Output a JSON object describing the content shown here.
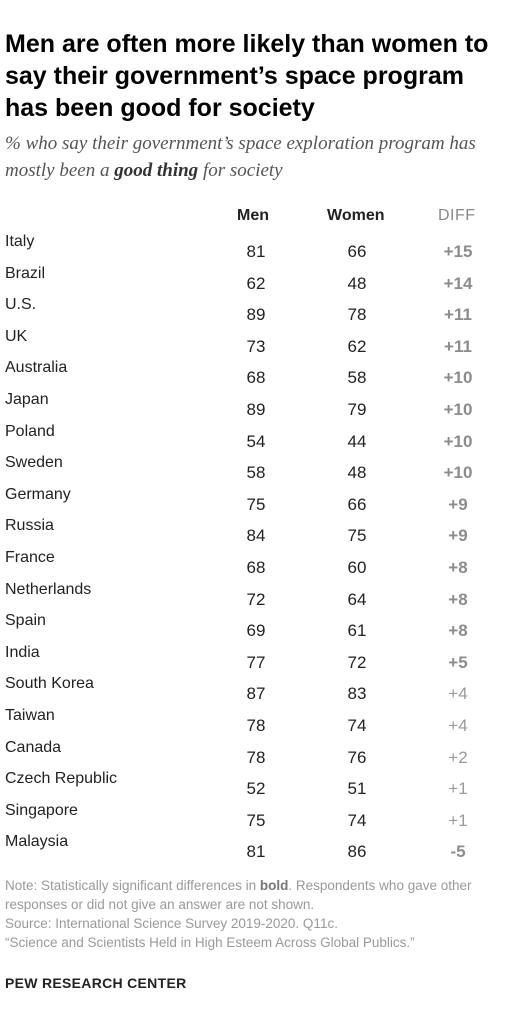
{
  "title": "Men are often more likely than women to say their government’s space program has been good for society",
  "subtitle": {
    "before": "% who say their government’s space exploration program has mostly been a ",
    "emphasis": "good thing",
    "after": " for society"
  },
  "chart_data": {
    "type": "table",
    "columns": [
      "Men",
      "Women",
      "DIFF"
    ],
    "rows": [
      {
        "country": "Italy",
        "men": 81,
        "women": 66,
        "diff": "+15",
        "significant": true
      },
      {
        "country": "Brazil",
        "men": 62,
        "women": 48,
        "diff": "+14",
        "significant": true
      },
      {
        "country": "U.S.",
        "men": 89,
        "women": 78,
        "diff": "+11",
        "significant": true
      },
      {
        "country": "UK",
        "men": 73,
        "women": 62,
        "diff": "+11",
        "significant": true
      },
      {
        "country": "Australia",
        "men": 68,
        "women": 58,
        "diff": "+10",
        "significant": true
      },
      {
        "country": "Japan",
        "men": 89,
        "women": 79,
        "diff": "+10",
        "significant": true
      },
      {
        "country": "Poland",
        "men": 54,
        "women": 44,
        "diff": "+10",
        "significant": true
      },
      {
        "country": "Sweden",
        "men": 58,
        "women": 48,
        "diff": "+10",
        "significant": true
      },
      {
        "country": "Germany",
        "men": 75,
        "women": 66,
        "diff": "+9",
        "significant": true
      },
      {
        "country": "Russia",
        "men": 84,
        "women": 75,
        "diff": "+9",
        "significant": true
      },
      {
        "country": "France",
        "men": 68,
        "women": 60,
        "diff": "+8",
        "significant": true
      },
      {
        "country": "Netherlands",
        "men": 72,
        "women": 64,
        "diff": "+8",
        "significant": true
      },
      {
        "country": "Spain",
        "men": 69,
        "women": 61,
        "diff": "+8",
        "significant": true
      },
      {
        "country": "India",
        "men": 77,
        "women": 72,
        "diff": "+5",
        "significant": true
      },
      {
        "country": "South Korea",
        "men": 87,
        "women": 83,
        "diff": "+4",
        "significant": false
      },
      {
        "country": "Taiwan",
        "men": 78,
        "women": 74,
        "diff": "+4",
        "significant": false
      },
      {
        "country": "Canada",
        "men": 78,
        "women": 76,
        "diff": "+2",
        "significant": false
      },
      {
        "country": "Czech Republic",
        "men": 52,
        "women": 51,
        "diff": "+1",
        "significant": false
      },
      {
        "country": "Singapore",
        "men": 75,
        "women": 74,
        "diff": "+1",
        "significant": false
      },
      {
        "country": "Malaysia",
        "men": 81,
        "women": 86,
        "diff": "-5",
        "significant": true
      }
    ]
  },
  "note": {
    "prefix": "Note: Statistically significant differences in ",
    "bold": "bold",
    "rest": ". Respondents who gave other responses or did not give an answer are not shown.",
    "source": "Source: International Science Survey 2019-2020. Q11c.",
    "report": "“Science and Scientists Held in High Esteem Across Global Publics.”"
  },
  "brand": "PEW RESEARCH CENTER"
}
